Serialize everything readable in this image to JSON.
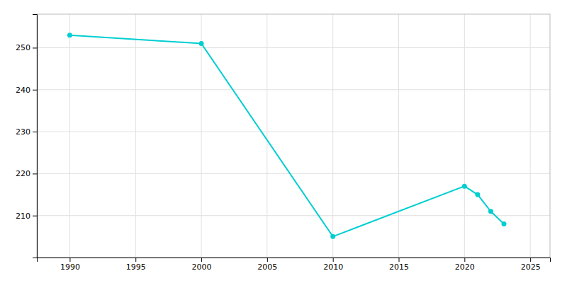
{
  "chart_data": {
    "type": "line",
    "x": [
      1990,
      2000,
      2010,
      2020,
      2021,
      2022,
      2023
    ],
    "values": [
      253,
      251,
      205,
      217,
      215,
      211,
      208
    ],
    "color": "#00CED1",
    "marker": "circle",
    "xlim": [
      1987.5,
      2026.5
    ],
    "ylim": [
      200,
      258
    ],
    "xticks": [
      1990,
      1995,
      2000,
      2005,
      2010,
      2015,
      2020,
      2025
    ],
    "yticks": [
      210,
      220,
      230,
      240,
      250
    ],
    "grid": true
  }
}
